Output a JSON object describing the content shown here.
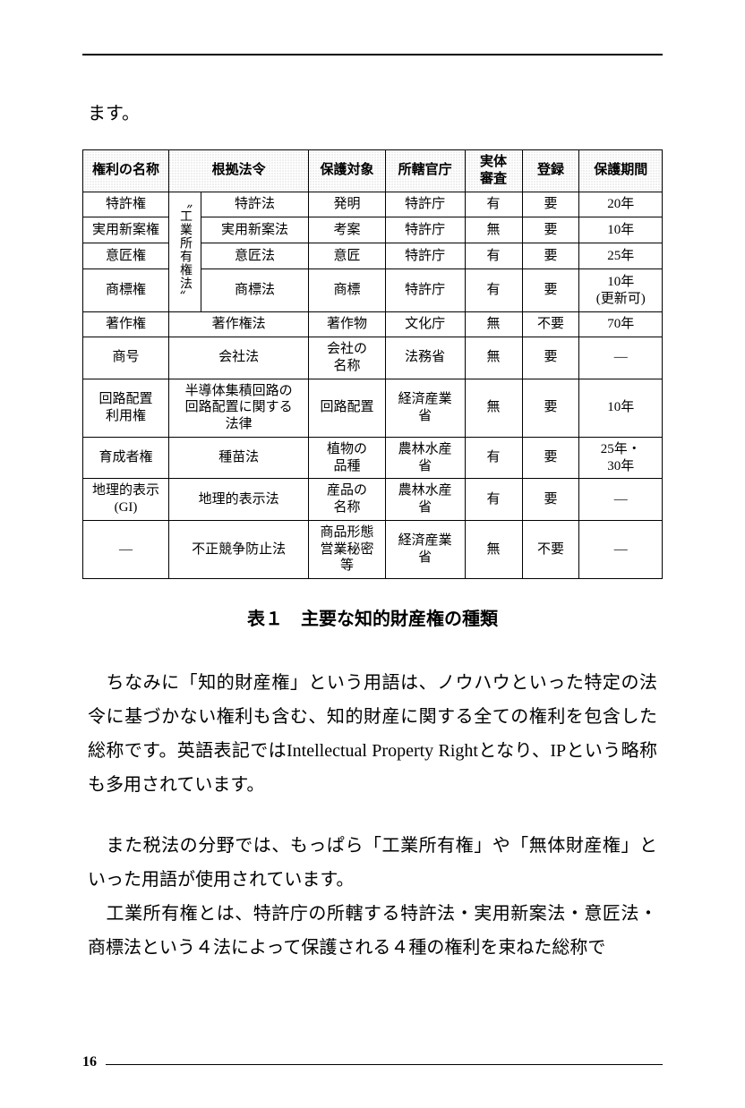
{
  "lead_text": "ます。",
  "table": {
    "headers": [
      "権利の名称",
      "根拠法令",
      "保護対象",
      "所轄官庁",
      "実体\n審査",
      "登録",
      "保護期間"
    ],
    "industrial_label": "〝工業所有権法〟",
    "rows_industrial": [
      {
        "name": "特許権",
        "law": "特許法",
        "subject": "発明",
        "agency": "特許庁",
        "exam": "有",
        "reg": "要",
        "period": "20年"
      },
      {
        "name": "実用新案権",
        "law": "実用新案法",
        "subject": "考案",
        "agency": "特許庁",
        "exam": "無",
        "reg": "要",
        "period": "10年"
      },
      {
        "name": "意匠権",
        "law": "意匠法",
        "subject": "意匠",
        "agency": "特許庁",
        "exam": "有",
        "reg": "要",
        "period": "25年"
      },
      {
        "name": "商標権",
        "law": "商標法",
        "subject": "商標",
        "agency": "特許庁",
        "exam": "有",
        "reg": "要",
        "period": "10年\n(更新可)"
      }
    ],
    "rows_other": [
      {
        "name": "著作権",
        "law": "著作権法",
        "subject": "著作物",
        "agency": "文化庁",
        "exam": "無",
        "reg": "不要",
        "period": "70年"
      },
      {
        "name": "商号",
        "law": "会社法",
        "subject": "会社の\n名称",
        "agency": "法務省",
        "exam": "無",
        "reg": "要",
        "period": "—"
      },
      {
        "name": "回路配置\n利用権",
        "law": "半導体集積回路の\n回路配置に関する\n法律",
        "subject": "回路配置",
        "agency": "経済産業\n省",
        "exam": "無",
        "reg": "要",
        "period": "10年"
      },
      {
        "name": "育成者権",
        "law": "種苗法",
        "subject": "植物の\n品種",
        "agency": "農林水産\n省",
        "exam": "有",
        "reg": "要",
        "period": "25年・\n30年"
      },
      {
        "name": "地理的表示\n(GI)",
        "law": "地理的表示法",
        "subject": "産品の\n名称",
        "agency": "農林水産\n省",
        "exam": "有",
        "reg": "要",
        "period": "—"
      },
      {
        "name": "—",
        "law": "不正競争防止法",
        "subject": "商品形態\n営業秘密\n等",
        "agency": "経済産業\n省",
        "exam": "無",
        "reg": "不要",
        "period": "—"
      }
    ]
  },
  "caption": "表１　主要な知的財産権の種類",
  "para1": "ちなみに「知的財産権」という用語は、ノウハウといった特定の法令に基づかない権利も含む、知的財産に関する全ての権利を包含した総称です。英語表記ではIntellectual Property Rightとなり、IPという略称も多用されています。",
  "para2": "また税法の分野では、もっぱら「工業所有権」や「無体財産権」といった用語が使用されています。",
  "para3": "工業所有権とは、特許庁の所轄する特許法・実用新案法・意匠法・商標法という４法によって保護される４種の権利を束ねた総称で",
  "page_number": "16"
}
